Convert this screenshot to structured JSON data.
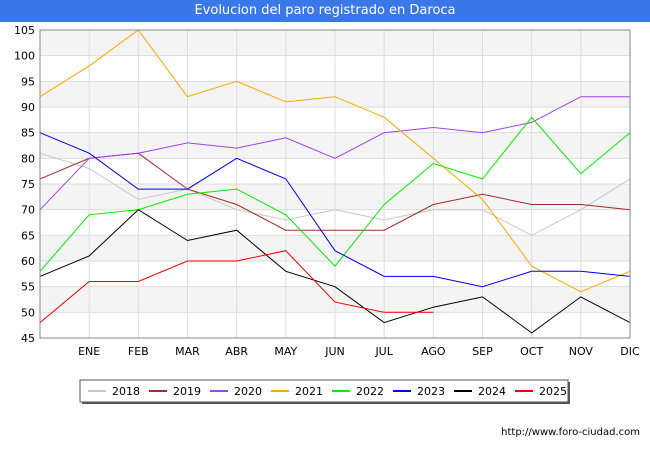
{
  "title": "Evolucion del paro registrado en Daroca",
  "credit": "http://www.foro-ciudad.com",
  "chart_data": {
    "type": "line",
    "title": "Evolucion del paro registrado en Daroca",
    "categories": [
      "",
      "ENE",
      "FEB",
      "MAR",
      "ABR",
      "MAY",
      "JUN",
      "JUL",
      "AGO",
      "SEP",
      "OCT",
      "NOV",
      "DIC"
    ],
    "ylim": [
      45,
      105
    ],
    "yticks": [
      45,
      50,
      55,
      60,
      65,
      70,
      75,
      80,
      85,
      90,
      95,
      100,
      105
    ],
    "grid": true,
    "legend_position": "bottom",
    "series": [
      {
        "name": "2018",
        "color": "#c8c8c8",
        "values": [
          81,
          78,
          72,
          74,
          70,
          68,
          70,
          68,
          70,
          70,
          65,
          70,
          76
        ]
      },
      {
        "name": "2019",
        "color": "#a52a2a",
        "values": [
          76,
          80,
          81,
          74,
          71,
          66,
          66,
          66,
          71,
          73,
          71,
          71,
          70
        ]
      },
      {
        "name": "2020",
        "color": "#a040f0",
        "values": [
          70,
          80,
          81,
          83,
          82,
          84,
          80,
          85,
          86,
          85,
          87,
          92,
          92
        ]
      },
      {
        "name": "2021",
        "color": "#ffa500",
        "values": [
          92,
          98,
          105,
          92,
          95,
          91,
          92,
          88,
          80,
          72,
          59,
          54,
          58
        ]
      },
      {
        "name": "2022",
        "color": "#00ee00",
        "values": [
          58,
          69,
          70,
          73,
          74,
          69,
          59,
          71,
          79,
          76,
          88,
          77,
          85
        ]
      },
      {
        "name": "2023",
        "color": "#0000ee",
        "values": [
          85,
          81,
          74,
          74,
          80,
          76,
          62,
          57,
          57,
          55,
          58,
          58,
          57
        ]
      },
      {
        "name": "2024",
        "color": "#000000",
        "values": [
          57,
          61,
          70,
          64,
          66,
          58,
          55,
          48,
          51,
          53,
          46,
          53,
          48
        ]
      },
      {
        "name": "2025",
        "color": "#ee0000",
        "values": [
          48,
          56,
          56,
          60,
          60,
          62,
          52,
          50,
          50,
          null,
          null,
          null,
          null
        ]
      }
    ]
  }
}
